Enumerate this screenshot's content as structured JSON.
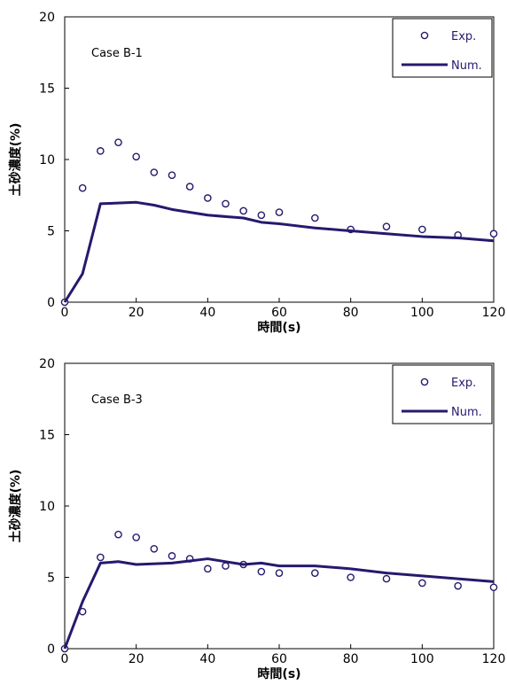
{
  "colors": {
    "series": "#241a6e",
    "axis": "#000000",
    "background": "#ffffff"
  },
  "chart_data": [
    {
      "type": "scatter",
      "case_label": "Case B-1",
      "xlabel": "時間(s)",
      "ylabel": "土砂濃度(%)",
      "xlim": [
        0,
        120
      ],
      "ylim": [
        0,
        20
      ],
      "xticks": [
        0,
        20,
        40,
        60,
        80,
        100,
        120
      ],
      "yticks": [
        0,
        5,
        10,
        15,
        20
      ],
      "grid": false,
      "legend_position": "top-right",
      "series": [
        {
          "name": "Exp.",
          "kind": "markers",
          "x": [
            0,
            5,
            10,
            15,
            20,
            25,
            30,
            35,
            40,
            45,
            50,
            55,
            60,
            70,
            80,
            90,
            100,
            110,
            120
          ],
          "y": [
            0,
            8.0,
            10.6,
            11.2,
            10.2,
            9.1,
            8.9,
            8.1,
            7.3,
            6.9,
            6.4,
            6.1,
            6.3,
            5.9,
            5.1,
            5.3,
            5.1,
            4.7,
            4.8
          ]
        },
        {
          "name": "Num.",
          "kind": "line",
          "x": [
            0,
            5,
            10,
            20,
            25,
            30,
            40,
            50,
            55,
            60,
            70,
            80,
            90,
            100,
            110,
            120
          ],
          "y": [
            0,
            2.0,
            6.9,
            7.0,
            6.8,
            6.5,
            6.1,
            5.9,
            5.6,
            5.5,
            5.2,
            5.0,
            4.8,
            4.6,
            4.5,
            4.3
          ]
        }
      ]
    },
    {
      "type": "scatter",
      "case_label": "Case B-3",
      "xlabel": "時間(s)",
      "ylabel": "土砂濃度(%)",
      "xlim": [
        0,
        120
      ],
      "ylim": [
        0,
        20
      ],
      "xticks": [
        0,
        20,
        40,
        60,
        80,
        100,
        120
      ],
      "yticks": [
        0,
        5,
        10,
        15,
        20
      ],
      "grid": false,
      "legend_position": "top-right",
      "series": [
        {
          "name": "Exp.",
          "kind": "markers",
          "x": [
            0,
            5,
            10,
            15,
            20,
            25,
            30,
            35,
            40,
            45,
            50,
            55,
            60,
            70,
            80,
            90,
            100,
            110,
            120
          ],
          "y": [
            0,
            2.6,
            6.4,
            8.0,
            7.8,
            7.0,
            6.5,
            6.3,
            5.6,
            5.8,
            5.9,
            5.4,
            5.3,
            5.3,
            5.0,
            4.9,
            4.6,
            4.4,
            4.3
          ]
        },
        {
          "name": "Num.",
          "kind": "line",
          "x": [
            0,
            5,
            10,
            15,
            20,
            30,
            40,
            50,
            55,
            60,
            70,
            80,
            90,
            100,
            110,
            120
          ],
          "y": [
            0,
            3.3,
            6.0,
            6.1,
            5.9,
            6.0,
            6.3,
            5.9,
            6.0,
            5.8,
            5.8,
            5.6,
            5.3,
            5.1,
            4.9,
            4.7
          ]
        }
      ]
    }
  ]
}
